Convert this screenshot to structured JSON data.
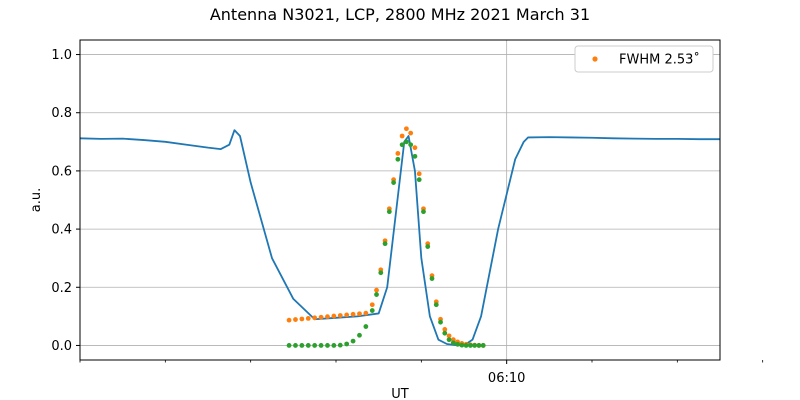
{
  "colors": {
    "series_main": "#1f77b4",
    "series_fwhm": "#ff7f0e",
    "series_fit": "#2ca02c",
    "grid": "#b0b0b0"
  },
  "chart_data": {
    "type": "line",
    "title": "Antenna N3021, LCP, 2800 MHz 2021 March 31",
    "xlabel": "UT",
    "ylabel": "a.u.",
    "x_unit": "minutes",
    "xlim": [
      -10,
      5
    ],
    "ylim": [
      -0.05,
      1.05
    ],
    "x_ticks": [
      {
        "value": 0,
        "label": "06:10"
      }
    ],
    "x_minor_ticks": [
      -10,
      -8,
      -6,
      -4,
      -2,
      2,
      4,
      6
    ],
    "y_ticks": [
      {
        "value": 0.0,
        "label": "0.0"
      },
      {
        "value": 0.2,
        "label": "0.2"
      },
      {
        "value": 0.4,
        "label": "0.4"
      },
      {
        "value": 0.6,
        "label": "0.6"
      },
      {
        "value": 0.8,
        "label": "0.8"
      },
      {
        "value": 1.0,
        "label": "1.0"
      }
    ],
    "grid": true,
    "legend": {
      "position": "top-right",
      "entries": [
        {
          "series": "FWHM",
          "label": "FWHM 2.53$^\\circ$",
          "display": "FWHM 2.53˚"
        }
      ]
    },
    "series": [
      {
        "name": "",
        "style": "line",
        "color_key": "series_main",
        "points": [
          [
            -10.0,
            0.712
          ],
          [
            -9.5,
            0.71
          ],
          [
            -9.0,
            0.711
          ],
          [
            -8.5,
            0.706
          ],
          [
            -8.0,
            0.7
          ],
          [
            -7.5,
            0.69
          ],
          [
            -7.0,
            0.68
          ],
          [
            -6.7,
            0.675
          ],
          [
            -6.5,
            0.69
          ],
          [
            -6.38,
            0.74
          ],
          [
            -6.25,
            0.72
          ],
          [
            -6.0,
            0.56
          ],
          [
            -5.5,
            0.3
          ],
          [
            -5.0,
            0.16
          ],
          [
            -4.5,
            0.09
          ],
          [
            -4.0,
            0.095
          ],
          [
            -3.5,
            0.1
          ],
          [
            -3.0,
            0.11
          ],
          [
            -2.8,
            0.2
          ],
          [
            -2.6,
            0.45
          ],
          [
            -2.4,
            0.7
          ],
          [
            -2.3,
            0.72
          ],
          [
            -2.15,
            0.6
          ],
          [
            -2.0,
            0.3
          ],
          [
            -1.8,
            0.1
          ],
          [
            -1.6,
            0.02
          ],
          [
            -1.4,
            0.005
          ],
          [
            -1.2,
            0.001
          ],
          [
            -1.0,
            0.0
          ],
          [
            -0.8,
            0.02
          ],
          [
            -0.6,
            0.1
          ],
          [
            -0.4,
            0.25
          ],
          [
            -0.2,
            0.4
          ],
          [
            0.0,
            0.52
          ],
          [
            0.2,
            0.64
          ],
          [
            0.4,
            0.7
          ],
          [
            0.5,
            0.715
          ],
          [
            1.0,
            0.716
          ],
          [
            1.5,
            0.715
          ],
          [
            2.0,
            0.714
          ],
          [
            2.5,
            0.712
          ],
          [
            3.0,
            0.711
          ],
          [
            3.5,
            0.71
          ],
          [
            4.0,
            0.71
          ],
          [
            4.5,
            0.709
          ],
          [
            5.0,
            0.709
          ]
        ]
      },
      {
        "name": "FWHM",
        "style": "scatter",
        "color_key": "series_fwhm",
        "points": [
          [
            -5.1,
            0.087
          ],
          [
            -4.95,
            0.089
          ],
          [
            -4.8,
            0.091
          ],
          [
            -4.65,
            0.093
          ],
          [
            -4.5,
            0.095
          ],
          [
            -4.35,
            0.097
          ],
          [
            -4.2,
            0.099
          ],
          [
            -4.05,
            0.101
          ],
          [
            -3.9,
            0.103
          ],
          [
            -3.75,
            0.105
          ],
          [
            -3.6,
            0.107
          ],
          [
            -3.45,
            0.109
          ],
          [
            -3.3,
            0.111
          ],
          [
            -3.15,
            0.14
          ],
          [
            -3.05,
            0.19
          ],
          [
            -2.95,
            0.26
          ],
          [
            -2.85,
            0.36
          ],
          [
            -2.75,
            0.47
          ],
          [
            -2.65,
            0.57
          ],
          [
            -2.55,
            0.66
          ],
          [
            -2.45,
            0.72
          ],
          [
            -2.35,
            0.745
          ],
          [
            -2.25,
            0.73
          ],
          [
            -2.15,
            0.68
          ],
          [
            -2.05,
            0.59
          ],
          [
            -1.95,
            0.47
          ],
          [
            -1.85,
            0.35
          ],
          [
            -1.75,
            0.24
          ],
          [
            -1.65,
            0.15
          ],
          [
            -1.55,
            0.09
          ],
          [
            -1.45,
            0.055
          ],
          [
            -1.35,
            0.033
          ],
          [
            -1.25,
            0.02
          ],
          [
            -1.15,
            0.012
          ],
          [
            -1.05,
            0.007
          ],
          [
            -0.95,
            0.004
          ],
          [
            -0.85,
            0.002
          ],
          [
            -0.75,
            0.001
          ],
          [
            -0.65,
            0.0
          ],
          [
            -0.55,
            0.0
          ]
        ]
      },
      {
        "name": "",
        "style": "scatter",
        "color_key": "series_fit",
        "points": [
          [
            -5.1,
            0.0
          ],
          [
            -4.95,
            0.0
          ],
          [
            -4.8,
            0.0
          ],
          [
            -4.65,
            0.0
          ],
          [
            -4.5,
            0.0
          ],
          [
            -4.35,
            0.0
          ],
          [
            -4.2,
            0.0
          ],
          [
            -4.05,
            0.0
          ],
          [
            -3.9,
            0.001
          ],
          [
            -3.75,
            0.005
          ],
          [
            -3.6,
            0.015
          ],
          [
            -3.45,
            0.035
          ],
          [
            -3.3,
            0.065
          ],
          [
            -3.15,
            0.12
          ],
          [
            -3.05,
            0.175
          ],
          [
            -2.95,
            0.25
          ],
          [
            -2.85,
            0.35
          ],
          [
            -2.75,
            0.46
          ],
          [
            -2.65,
            0.56
          ],
          [
            -2.55,
            0.64
          ],
          [
            -2.45,
            0.69
          ],
          [
            -2.35,
            0.7
          ],
          [
            -2.25,
            0.69
          ],
          [
            -2.15,
            0.65
          ],
          [
            -2.05,
            0.57
          ],
          [
            -1.95,
            0.46
          ],
          [
            -1.85,
            0.34
          ],
          [
            -1.75,
            0.23
          ],
          [
            -1.65,
            0.14
          ],
          [
            -1.55,
            0.08
          ],
          [
            -1.45,
            0.042
          ],
          [
            -1.35,
            0.02
          ],
          [
            -1.25,
            0.009
          ],
          [
            -1.15,
            0.004
          ],
          [
            -1.05,
            0.001
          ],
          [
            -0.95,
            0.0
          ],
          [
            -0.85,
            0.0
          ],
          [
            -0.75,
            0.0
          ],
          [
            -0.65,
            0.0
          ],
          [
            -0.55,
            0.0
          ]
        ]
      }
    ]
  }
}
